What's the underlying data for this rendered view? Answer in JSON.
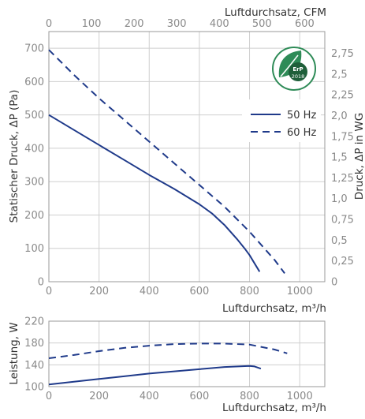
{
  "chart_data": [
    {
      "type": "line",
      "title": "",
      "xlabel": "Luftdurchsatz, m³/h",
      "x2label": "Luftdurchsatz, CFM",
      "ylabel": "Statischer Druck, ΔP (Pa)",
      "y2label": "Druck, ΔP in WG",
      "xlim": [
        0,
        1100
      ],
      "ylim": [
        0,
        750
      ],
      "x_ticks": [
        "0",
        "200",
        "400",
        "600",
        "800",
        "1000"
      ],
      "y_ticks": [
        "0",
        "100",
        "200",
        "300",
        "400",
        "500",
        "600",
        "700"
      ],
      "x2_ticks": [
        "0",
        "100",
        "200",
        "300",
        "400",
        "500",
        "600"
      ],
      "y2_ticks": [
        "0",
        "0,25",
        "0,5",
        "0,75",
        "1,0",
        "1,25",
        "1,5",
        "1,75",
        "2,0",
        "2,25",
        "2,5",
        "2,75"
      ],
      "grid": true,
      "legend_position": "top-right",
      "series": [
        {
          "name": "50 Hz",
          "style": "solid",
          "color": "#1f3a8a",
          "x": [
            0,
            100,
            200,
            300,
            400,
            500,
            600,
            650,
            700,
            750,
            780,
            800,
            820,
            840
          ],
          "y": [
            500,
            455,
            410,
            365,
            320,
            278,
            232,
            205,
            170,
            128,
            100,
            80,
            55,
            30
          ]
        },
        {
          "name": "60 Hz",
          "style": "dashed",
          "color": "#1f3a8a",
          "x": [
            0,
            100,
            200,
            300,
            400,
            500,
            600,
            700,
            800,
            900,
            940
          ],
          "y": [
            695,
            620,
            550,
            485,
            420,
            355,
            290,
            225,
            150,
            65,
            25
          ]
        }
      ]
    },
    {
      "type": "line",
      "title": "",
      "xlabel": "Luftdurchsatz, m³/h",
      "ylabel": "Leistung, W",
      "xlim": [
        0,
        1100
      ],
      "ylim": [
        100,
        220
      ],
      "x_ticks": [
        "0",
        "200",
        "400",
        "600",
        "800",
        "1000"
      ],
      "y_ticks": [
        "100",
        "140",
        "180",
        "220"
      ],
      "grid": true,
      "series": [
        {
          "name": "50 Hz",
          "style": "solid",
          "color": "#1f3a8a",
          "x": [
            0,
            100,
            200,
            300,
            400,
            500,
            600,
            700,
            800,
            820,
            845
          ],
          "y": [
            104,
            109,
            114,
            119,
            124,
            128,
            132,
            136,
            138,
            137,
            133
          ]
        },
        {
          "name": "60 Hz",
          "style": "dashed",
          "color": "#1f3a8a",
          "x": [
            0,
            100,
            200,
            300,
            400,
            500,
            600,
            700,
            800,
            900,
            950
          ],
          "y": [
            152,
            158,
            165,
            171,
            175,
            178,
            179,
            179,
            177,
            168,
            161
          ]
        }
      ]
    }
  ],
  "badge": {
    "label": "ErP",
    "year": "2018",
    "icon": "leaf-icon",
    "colors": [
      "#2e8b57",
      "#1f5f3a"
    ]
  },
  "colors": {
    "line": "#1f3a8a",
    "grid": "#cfcfcf",
    "tick": "#8a8a8a"
  }
}
